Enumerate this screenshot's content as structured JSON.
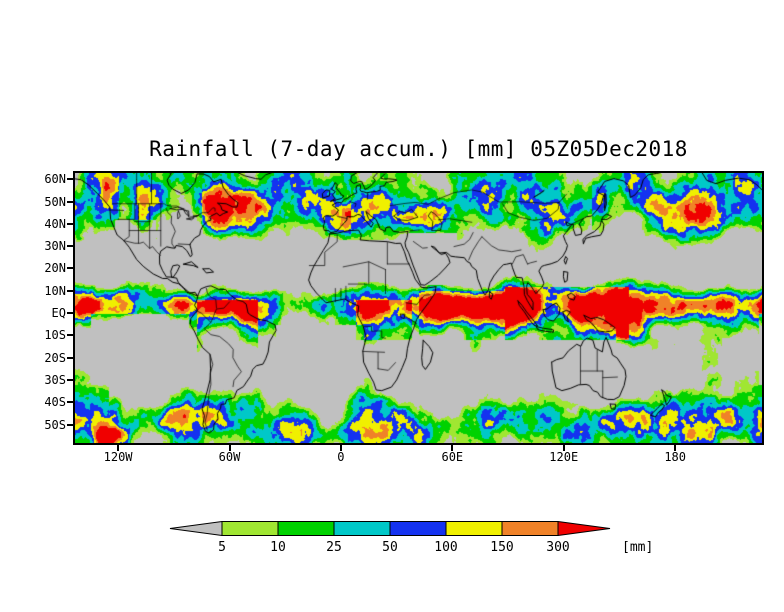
{
  "title": "Rainfall (7-day accum.) [mm] 05Z05Dec2018",
  "map": {
    "y_axis_labels": [
      "60N",
      "50N",
      "40N",
      "30N",
      "20N",
      "10N",
      "EQ",
      "10S",
      "20S",
      "30S",
      "40S",
      "50S"
    ],
    "x_axis_labels": [
      "120W",
      "60W",
      "0",
      "60E",
      "120E",
      "180"
    ]
  },
  "colorbar": {
    "unit_label": "[mm]",
    "tick_labels": [
      "5",
      "10",
      "25",
      "50",
      "100",
      "150",
      "300"
    ],
    "colors": [
      "#c0c0c0",
      "#a0e632",
      "#00d200",
      "#00c8c8",
      "#1432f0",
      "#f0f000",
      "#f08228",
      "#f00000"
    ]
  },
  "chart_data": {
    "type": "heatmap",
    "title": "Rainfall (7-day accum.) [mm] 05Z05Dec2018",
    "variable": "Rainfall, 7-day accumulation",
    "unit": "mm",
    "valid_time": "05Z05Dec2018",
    "projection": "global equirectangular world map",
    "lat_ticks": [
      "60N",
      "50N",
      "40N",
      "30N",
      "20N",
      "10N",
      "EQ",
      "10S",
      "20S",
      "30S",
      "40S",
      "50S"
    ],
    "lon_ticks": [
      "120W",
      "60W",
      "0",
      "60E",
      "120E",
      "180"
    ],
    "color_scale": {
      "thresholds_mm": [
        5,
        10,
        25,
        50,
        100,
        150,
        300
      ],
      "band_colors": [
        "#c0c0c0",
        "#a0e632",
        "#00d200",
        "#00c8c8",
        "#1432f0",
        "#f0f000",
        "#f08228",
        "#f00000"
      ],
      "below_first": "< 5 mm shown gray",
      "above_last": "> 300 mm shown red"
    },
    "legend_position": "bottom",
    "grid": false
  }
}
